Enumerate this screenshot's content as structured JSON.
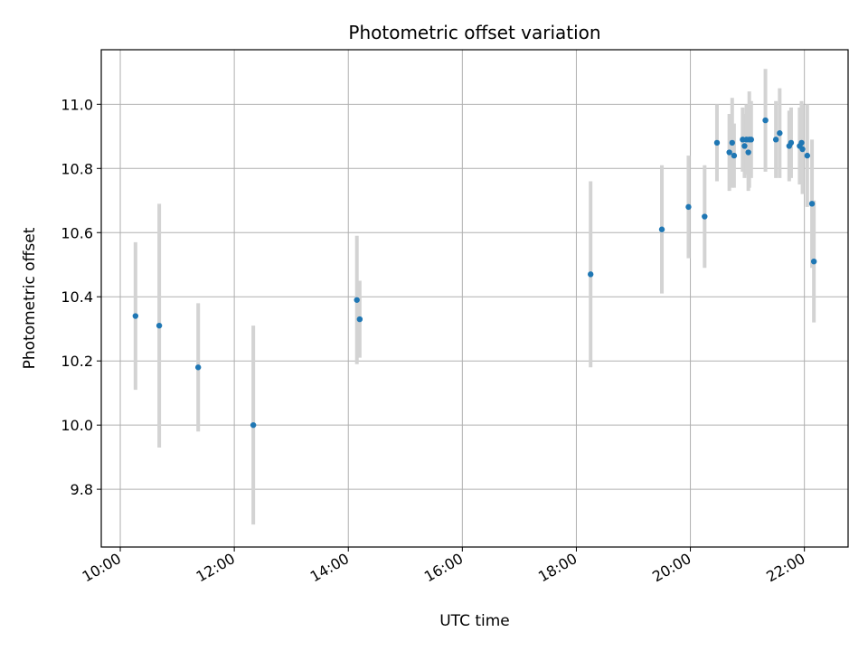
{
  "chart_data": {
    "type": "scatter",
    "title": "Photometric offset variation",
    "xlabel": "UTC time",
    "ylabel": "Photometric offset",
    "x_unit": "hours UTC",
    "xlim": [
      "09:40",
      "22:46"
    ],
    "ylim": [
      9.62,
      11.17
    ],
    "x_ticks": [
      "10:00",
      "12:00",
      "14:00",
      "16:00",
      "18:00",
      "20:00",
      "22:00"
    ],
    "y_ticks": [
      "9.8",
      "10.0",
      "10.2",
      "10.4",
      "10.6",
      "10.8",
      "11.0"
    ],
    "grid": true,
    "marker_color": "#1f77b4",
    "errorbar_color": "#d3d3d3",
    "points": [
      {
        "t": "10:16",
        "y": 10.34,
        "err": 0.23
      },
      {
        "t": "10:41",
        "y": 10.31,
        "err": 0.38
      },
      {
        "t": "11:22",
        "y": 10.18,
        "err": 0.2
      },
      {
        "t": "12:20",
        "y": 10.0,
        "err": 0.31
      },
      {
        "t": "14:09",
        "y": 10.39,
        "err": 0.2
      },
      {
        "t": "14:12",
        "y": 10.33,
        "err": 0.12
      },
      {
        "t": "18:15",
        "y": 10.47,
        "err": 0.29
      },
      {
        "t": "19:30",
        "y": 10.61,
        "err": 0.2
      },
      {
        "t": "19:58",
        "y": 10.68,
        "err": 0.16
      },
      {
        "t": "20:15",
        "y": 10.65,
        "err": 0.16
      },
      {
        "t": "20:28",
        "y": 10.88,
        "err": 0.12
      },
      {
        "t": "20:41",
        "y": 10.85,
        "err": 0.12
      },
      {
        "t": "20:44",
        "y": 10.88,
        "err": 0.14
      },
      {
        "t": "20:46",
        "y": 10.84,
        "err": 0.1
      },
      {
        "t": "20:55",
        "y": 10.89,
        "err": 0.1
      },
      {
        "t": "20:57",
        "y": 10.87,
        "err": 0.1
      },
      {
        "t": "20:59",
        "y": 10.89,
        "err": 0.11
      },
      {
        "t": "21:01",
        "y": 10.85,
        "err": 0.12
      },
      {
        "t": "21:02",
        "y": 10.89,
        "err": 0.15
      },
      {
        "t": "21:04",
        "y": 10.89,
        "err": 0.12
      },
      {
        "t": "21:19",
        "y": 10.95,
        "err": 0.16
      },
      {
        "t": "21:30",
        "y": 10.89,
        "err": 0.12
      },
      {
        "t": "21:34",
        "y": 10.91,
        "err": 0.14
      },
      {
        "t": "21:44",
        "y": 10.87,
        "err": 0.11
      },
      {
        "t": "21:46",
        "y": 10.88,
        "err": 0.11
      },
      {
        "t": "21:55",
        "y": 10.87,
        "err": 0.12
      },
      {
        "t": "21:57",
        "y": 10.88,
        "err": 0.13
      },
      {
        "t": "21:58",
        "y": 10.86,
        "err": 0.14
      },
      {
        "t": "22:03",
        "y": 10.84,
        "err": 0.16
      },
      {
        "t": "22:08",
        "y": 10.69,
        "err": 0.2
      },
      {
        "t": "22:10",
        "y": 10.51,
        "err": 0.19
      }
    ]
  }
}
